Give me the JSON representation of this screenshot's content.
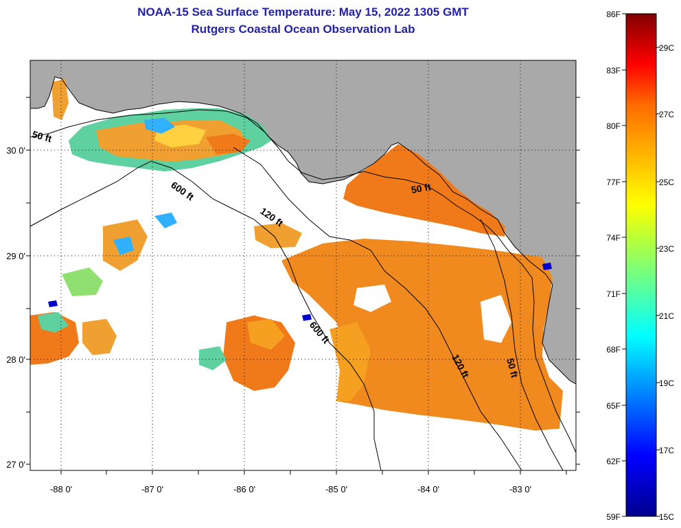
{
  "title": {
    "line1": "NOAA-15 Sea Surface Temperature:  May 15, 2022 1305 GMT",
    "line2": "Rutgers Coastal Ocean Observation Lab"
  },
  "map": {
    "lat_labels": [
      "30 0'",
      "29 0'",
      "28 0'",
      "27 0'"
    ],
    "lon_labels": [
      "-88 0'",
      "-87 0'",
      "-86 0'",
      "-85 0'",
      "-84 0'",
      "-83 0'"
    ],
    "contour_labels": [
      "50 ft",
      "600 ft",
      "120 ft",
      "600 ft",
      "50 ft",
      "120 ft",
      "50 ft"
    ],
    "colors": {
      "land": "#a9a9a9",
      "nodata": "#ffffff",
      "warm_sst": "#f07a1a"
    }
  },
  "colorbar": {
    "f_labels": [
      "86F",
      "83F",
      "80F",
      "77F",
      "74F",
      "71F",
      "68F",
      "65F",
      "62F",
      "59F"
    ],
    "c_labels": [
      "29C",
      "27C",
      "25C",
      "23C",
      "21C",
      "19C",
      "17C",
      "15C"
    ]
  }
}
